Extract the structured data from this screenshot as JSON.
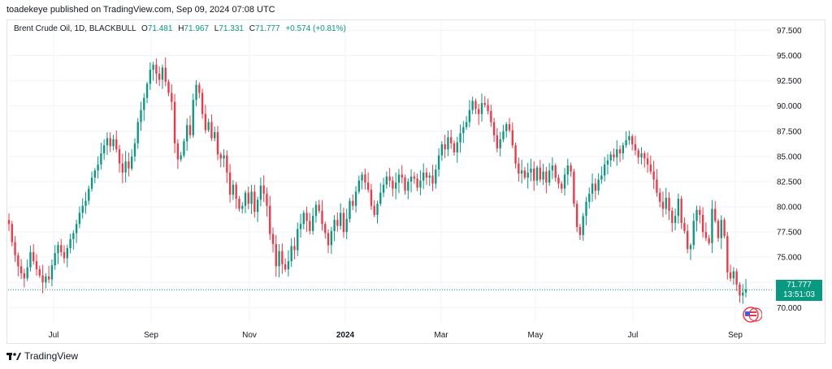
{
  "publisher_line": "toadekeye published on TradingView.com, Sep 09, 2024 07:08 UTC",
  "legend": {
    "symbol": "Brent Crude Oil, 1D, BLACKBULL",
    "o_label": "O",
    "o_value": "71.481",
    "h_label": "H",
    "h_value": "71.967",
    "l_label": "L",
    "l_value": "71.331",
    "c_label": "C",
    "c_value": "71.777",
    "change": "+0.574 (+0.81%)"
  },
  "last_price": {
    "price": "71.777",
    "countdown": "13:51:03"
  },
  "brand": {
    "name": "TradingView",
    "logo_icon": "tradingview-logo-icon"
  },
  "colors": {
    "up": "#089981",
    "down": "#f23645",
    "grid": "#f0f3fa",
    "text": "#131722",
    "last_line": "#089981"
  },
  "chart_data": {
    "type": "line",
    "title": "Brent Crude Oil, 1D, BLACKBULL",
    "candlestick": true,
    "xlabel": "",
    "ylabel": "",
    "ylim": [
      68.5,
      98.5
    ],
    "y_ticks": [
      "97.500",
      "95.000",
      "92.500",
      "90.000",
      "87.500",
      "85.000",
      "82.500",
      "80.000",
      "77.500",
      "75.000",
      "72.500",
      "70.000"
    ],
    "x_ticks": [
      "Jul",
      "Sep",
      "Nov",
      "2024",
      "Mar",
      "May",
      "Jul",
      "Sep"
    ],
    "x_tick_bold": [
      false,
      false,
      false,
      true,
      false,
      false,
      false,
      false
    ],
    "grid": true,
    "series": [
      {
        "name": "Close",
        "x_start": "2023-06-01",
        "x_end": "2024-09-09",
        "values": [
          78.3,
          76.5,
          75.2,
          74.1,
          73.4,
          72.9,
          74.0,
          75.5,
          74.6,
          73.8,
          73.2,
          72.5,
          73.1,
          72.8,
          74.2,
          75.4,
          76.2,
          75.5,
          74.9,
          75.9,
          76.8,
          77.4,
          78.3,
          79.4,
          80.1,
          80.6,
          81.8,
          82.9,
          83.6,
          84.2,
          85.3,
          86.1,
          86.8,
          86.0,
          86.7,
          85.7,
          84.3,
          83.4,
          84.5,
          83.8,
          85.0,
          86.3,
          88.4,
          89.6,
          90.8,
          92.2,
          93.6,
          94.1,
          93.2,
          92.6,
          93.8,
          92.4,
          91.3,
          90.4,
          86.3,
          84.7,
          85.1,
          86.5,
          88.1,
          87.1,
          90.6,
          92.1,
          91.3,
          89.2,
          87.6,
          88.4,
          86.8,
          87.4,
          85.2,
          84.8,
          85.1,
          83.4,
          81.2,
          82.2,
          80.8,
          79.8,
          80.1,
          81.4,
          80.3,
          81.5,
          79.5,
          80.7,
          82.1,
          81.3,
          80.1,
          77.3,
          76.3,
          74.1,
          75.6,
          74.3,
          73.8,
          74.6,
          76.1,
          75.7,
          77.8,
          78.3,
          79.4,
          78.6,
          77.6,
          79.1,
          80.2,
          79.6,
          78.3,
          77.4,
          76.2,
          77.6,
          78.7,
          78.1,
          79.4,
          77.5,
          78.8,
          80.6,
          80.1,
          81.5,
          82.6,
          83.2,
          82.4,
          81.7,
          80.1,
          79.2,
          80.3,
          81.4,
          82.2,
          83.0,
          82.6,
          81.8,
          82.4,
          83.2,
          82.9,
          81.6,
          82.5,
          83.0,
          82.8,
          81.9,
          82.6,
          83.4,
          82.9,
          83.1,
          82.3,
          83.7,
          85.1,
          86.2,
          85.7,
          86.9,
          86.3,
          85.4,
          86.4,
          87.3,
          87.9,
          88.4,
          89.6,
          90.5,
          89.7,
          89.2,
          90.3,
          90.1,
          89.5,
          88.4,
          87.1,
          85.8,
          86.7,
          87.5,
          88.2,
          87.6,
          86.1,
          84.3,
          83.3,
          83.6,
          82.9,
          83.4,
          83.8,
          82.6,
          83.9,
          82.7,
          83.5,
          82.4,
          83.6,
          84.1,
          82.9,
          82.3,
          81.8,
          83.2,
          84.1,
          83.5,
          80.3,
          78.0,
          77.2,
          79.1,
          80.5,
          81.3,
          82.3,
          81.6,
          82.7,
          83.1,
          84.2,
          84.6,
          85.2,
          84.9,
          85.7,
          85.3,
          86.1,
          86.6,
          87.0,
          86.2,
          85.6,
          84.9,
          85.3,
          84.8,
          84.2,
          83.5,
          82.7,
          81.4,
          80.5,
          79.8,
          80.9,
          79.6,
          78.4,
          79.1,
          80.8,
          78.4,
          77.6,
          75.8,
          76.2,
          78.6,
          79.7,
          79.2,
          77.5,
          76.9,
          76.4,
          79.8,
          78.6,
          76.9,
          78.7,
          77.1,
          73.5,
          72.9,
          73.6,
          72.3,
          71.2,
          71.5,
          71.8
        ]
      }
    ],
    "last_value": 71.777
  }
}
